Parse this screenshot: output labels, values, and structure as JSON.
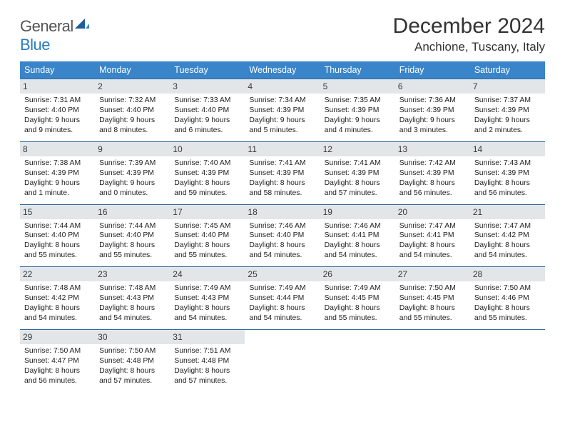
{
  "brand": {
    "word1": "General",
    "word2": "Blue"
  },
  "header": {
    "title": "December 2024",
    "location": "Anchione, Tuscany, Italy"
  },
  "colors": {
    "header_bar": "#3a85c9",
    "row_divider": "#2e6ca3",
    "daynum_bg": "#e3e6e8",
    "text": "#1e1e1e",
    "logo_blue": "#2b7bbf"
  },
  "weekdays": [
    "Sunday",
    "Monday",
    "Tuesday",
    "Wednesday",
    "Thursday",
    "Friday",
    "Saturday"
  ],
  "weeks": [
    [
      {
        "n": "1",
        "sr": "Sunrise: 7:31 AM",
        "ss": "Sunset: 4:40 PM",
        "dl": "Daylight: 9 hours and 9 minutes."
      },
      {
        "n": "2",
        "sr": "Sunrise: 7:32 AM",
        "ss": "Sunset: 4:40 PM",
        "dl": "Daylight: 9 hours and 8 minutes."
      },
      {
        "n": "3",
        "sr": "Sunrise: 7:33 AM",
        "ss": "Sunset: 4:40 PM",
        "dl": "Daylight: 9 hours and 6 minutes."
      },
      {
        "n": "4",
        "sr": "Sunrise: 7:34 AM",
        "ss": "Sunset: 4:39 PM",
        "dl": "Daylight: 9 hours and 5 minutes."
      },
      {
        "n": "5",
        "sr": "Sunrise: 7:35 AM",
        "ss": "Sunset: 4:39 PM",
        "dl": "Daylight: 9 hours and 4 minutes."
      },
      {
        "n": "6",
        "sr": "Sunrise: 7:36 AM",
        "ss": "Sunset: 4:39 PM",
        "dl": "Daylight: 9 hours and 3 minutes."
      },
      {
        "n": "7",
        "sr": "Sunrise: 7:37 AM",
        "ss": "Sunset: 4:39 PM",
        "dl": "Daylight: 9 hours and 2 minutes."
      }
    ],
    [
      {
        "n": "8",
        "sr": "Sunrise: 7:38 AM",
        "ss": "Sunset: 4:39 PM",
        "dl": "Daylight: 9 hours and 1 minute."
      },
      {
        "n": "9",
        "sr": "Sunrise: 7:39 AM",
        "ss": "Sunset: 4:39 PM",
        "dl": "Daylight: 9 hours and 0 minutes."
      },
      {
        "n": "10",
        "sr": "Sunrise: 7:40 AM",
        "ss": "Sunset: 4:39 PM",
        "dl": "Daylight: 8 hours and 59 minutes."
      },
      {
        "n": "11",
        "sr": "Sunrise: 7:41 AM",
        "ss": "Sunset: 4:39 PM",
        "dl": "Daylight: 8 hours and 58 minutes."
      },
      {
        "n": "12",
        "sr": "Sunrise: 7:41 AM",
        "ss": "Sunset: 4:39 PM",
        "dl": "Daylight: 8 hours and 57 minutes."
      },
      {
        "n": "13",
        "sr": "Sunrise: 7:42 AM",
        "ss": "Sunset: 4:39 PM",
        "dl": "Daylight: 8 hours and 56 minutes."
      },
      {
        "n": "14",
        "sr": "Sunrise: 7:43 AM",
        "ss": "Sunset: 4:39 PM",
        "dl": "Daylight: 8 hours and 56 minutes."
      }
    ],
    [
      {
        "n": "15",
        "sr": "Sunrise: 7:44 AM",
        "ss": "Sunset: 4:40 PM",
        "dl": "Daylight: 8 hours and 55 minutes."
      },
      {
        "n": "16",
        "sr": "Sunrise: 7:44 AM",
        "ss": "Sunset: 4:40 PM",
        "dl": "Daylight: 8 hours and 55 minutes."
      },
      {
        "n": "17",
        "sr": "Sunrise: 7:45 AM",
        "ss": "Sunset: 4:40 PM",
        "dl": "Daylight: 8 hours and 55 minutes."
      },
      {
        "n": "18",
        "sr": "Sunrise: 7:46 AM",
        "ss": "Sunset: 4:40 PM",
        "dl": "Daylight: 8 hours and 54 minutes."
      },
      {
        "n": "19",
        "sr": "Sunrise: 7:46 AM",
        "ss": "Sunset: 4:41 PM",
        "dl": "Daylight: 8 hours and 54 minutes."
      },
      {
        "n": "20",
        "sr": "Sunrise: 7:47 AM",
        "ss": "Sunset: 4:41 PM",
        "dl": "Daylight: 8 hours and 54 minutes."
      },
      {
        "n": "21",
        "sr": "Sunrise: 7:47 AM",
        "ss": "Sunset: 4:42 PM",
        "dl": "Daylight: 8 hours and 54 minutes."
      }
    ],
    [
      {
        "n": "22",
        "sr": "Sunrise: 7:48 AM",
        "ss": "Sunset: 4:42 PM",
        "dl": "Daylight: 8 hours and 54 minutes."
      },
      {
        "n": "23",
        "sr": "Sunrise: 7:48 AM",
        "ss": "Sunset: 4:43 PM",
        "dl": "Daylight: 8 hours and 54 minutes."
      },
      {
        "n": "24",
        "sr": "Sunrise: 7:49 AM",
        "ss": "Sunset: 4:43 PM",
        "dl": "Daylight: 8 hours and 54 minutes."
      },
      {
        "n": "25",
        "sr": "Sunrise: 7:49 AM",
        "ss": "Sunset: 4:44 PM",
        "dl": "Daylight: 8 hours and 54 minutes."
      },
      {
        "n": "26",
        "sr": "Sunrise: 7:49 AM",
        "ss": "Sunset: 4:45 PM",
        "dl": "Daylight: 8 hours and 55 minutes."
      },
      {
        "n": "27",
        "sr": "Sunrise: 7:50 AM",
        "ss": "Sunset: 4:45 PM",
        "dl": "Daylight: 8 hours and 55 minutes."
      },
      {
        "n": "28",
        "sr": "Sunrise: 7:50 AM",
        "ss": "Sunset: 4:46 PM",
        "dl": "Daylight: 8 hours and 55 minutes."
      }
    ],
    [
      {
        "n": "29",
        "sr": "Sunrise: 7:50 AM",
        "ss": "Sunset: 4:47 PM",
        "dl": "Daylight: 8 hours and 56 minutes."
      },
      {
        "n": "30",
        "sr": "Sunrise: 7:50 AM",
        "ss": "Sunset: 4:48 PM",
        "dl": "Daylight: 8 hours and 57 minutes."
      },
      {
        "n": "31",
        "sr": "Sunrise: 7:51 AM",
        "ss": "Sunset: 4:48 PM",
        "dl": "Daylight: 8 hours and 57 minutes."
      },
      {
        "empty": true
      },
      {
        "empty": true
      },
      {
        "empty": true
      },
      {
        "empty": true
      }
    ]
  ]
}
